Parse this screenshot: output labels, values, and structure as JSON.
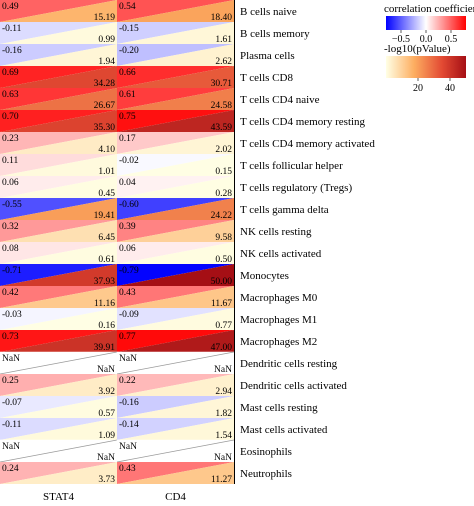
{
  "chart_data": {
    "type": "heatmap",
    "columns": [
      "STAT4",
      "CD4"
    ],
    "rows": [
      {
        "label": "B cells naive",
        "cells": [
          {
            "r": "0.49",
            "p": "15.19"
          },
          {
            "r": "0.54",
            "p": "18.40"
          }
        ]
      },
      {
        "label": "B cells memory",
        "cells": [
          {
            "r": "-0.11",
            "p": "0.99"
          },
          {
            "r": "-0.15",
            "p": "1.61"
          }
        ]
      },
      {
        "label": "Plasma cells",
        "cells": [
          {
            "r": "-0.16",
            "p": "1.94"
          },
          {
            "r": "-0.20",
            "p": "2.62"
          }
        ]
      },
      {
        "label": "T cells CD8",
        "cells": [
          {
            "r": "0.69",
            "p": "34.28"
          },
          {
            "r": "0.66",
            "p": "30.71"
          }
        ]
      },
      {
        "label": "T cells CD4 naive",
        "cells": [
          {
            "r": "0.63",
            "p": "26.67"
          },
          {
            "r": "0.61",
            "p": "24.58"
          }
        ]
      },
      {
        "label": "T cells CD4 memory resting",
        "cells": [
          {
            "r": "0.70",
            "p": "35.30"
          },
          {
            "r": "0.75",
            "p": "43.59"
          }
        ]
      },
      {
        "label": "T cells CD4 memory activated",
        "cells": [
          {
            "r": "0.23",
            "p": "4.10"
          },
          {
            "r": "0.17",
            "p": "2.02"
          }
        ]
      },
      {
        "label": "T cells follicular helper",
        "cells": [
          {
            "r": "0.11",
            "p": "1.01"
          },
          {
            "r": "-0.02",
            "p": "0.15"
          }
        ]
      },
      {
        "label": "T cells regulatory (Tregs)",
        "cells": [
          {
            "r": "0.06",
            "p": "0.45"
          },
          {
            "r": "0.04",
            "p": "0.28"
          }
        ]
      },
      {
        "label": "T cells gamma delta",
        "cells": [
          {
            "r": "-0.55",
            "p": "19.41"
          },
          {
            "r": "-0.60",
            "p": "24.22"
          }
        ]
      },
      {
        "label": "NK cells resting",
        "cells": [
          {
            "r": "0.32",
            "p": "6.45"
          },
          {
            "r": "0.39",
            "p": "9.58"
          }
        ]
      },
      {
        "label": "NK cells activated",
        "cells": [
          {
            "r": "0.08",
            "p": "0.61"
          },
          {
            "r": "0.06",
            "p": "0.50"
          }
        ]
      },
      {
        "label": "Monocytes",
        "cells": [
          {
            "r": "-0.71",
            "p": "37.93"
          },
          {
            "r": "-0.79",
            "p": "50.00"
          }
        ]
      },
      {
        "label": "Macrophages M0",
        "cells": [
          {
            "r": "0.42",
            "p": "11.16"
          },
          {
            "r": "0.43",
            "p": "11.67"
          }
        ]
      },
      {
        "label": "Macrophages M1",
        "cells": [
          {
            "r": "-0.03",
            "p": "0.16"
          },
          {
            "r": "-0.09",
            "p": "0.77"
          }
        ]
      },
      {
        "label": "Macrophages M2",
        "cells": [
          {
            "r": "0.73",
            "p": "39.91"
          },
          {
            "r": "0.77",
            "p": "47.00"
          }
        ]
      },
      {
        "label": "Dendritic cells resting",
        "cells": [
          {
            "r": "NaN",
            "p": "NaN"
          },
          {
            "r": "NaN",
            "p": "NaN"
          }
        ]
      },
      {
        "label": "Dendritic cells activated",
        "cells": [
          {
            "r": "0.25",
            "p": "3.92"
          },
          {
            "r": "0.22",
            "p": "2.94"
          }
        ]
      },
      {
        "label": "Mast cells resting",
        "cells": [
          {
            "r": "-0.07",
            "p": "0.57"
          },
          {
            "r": "-0.16",
            "p": "1.82"
          }
        ]
      },
      {
        "label": "Mast cells activated",
        "cells": [
          {
            "r": "-0.11",
            "p": "1.09"
          },
          {
            "r": "-0.14",
            "p": "1.54"
          }
        ]
      },
      {
        "label": "Eosinophils",
        "cells": [
          {
            "r": "NaN",
            "p": "NaN"
          },
          {
            "r": "NaN",
            "p": "NaN"
          }
        ]
      },
      {
        "label": "Neutrophils",
        "cells": [
          {
            "r": "0.24",
            "p": "3.73"
          },
          {
            "r": "0.43",
            "p": "11.27"
          }
        ]
      }
    ],
    "legend_correlation": {
      "title": "correlation coefficient",
      "ticks": [
        "−0.5",
        "0.0",
        "0.5"
      ],
      "range": [
        -0.8,
        0.8
      ],
      "colors": [
        "#0000ff",
        "#ffffff",
        "#ff0000"
      ]
    },
    "legend_pvalue": {
      "title": "-log10(pValue)",
      "ticks": [
        "20",
        "40"
      ],
      "range": [
        0,
        50
      ],
      "colors": [
        "#ffffe5",
        "#fdae61",
        "#e34a33",
        "#a50f15"
      ]
    }
  }
}
